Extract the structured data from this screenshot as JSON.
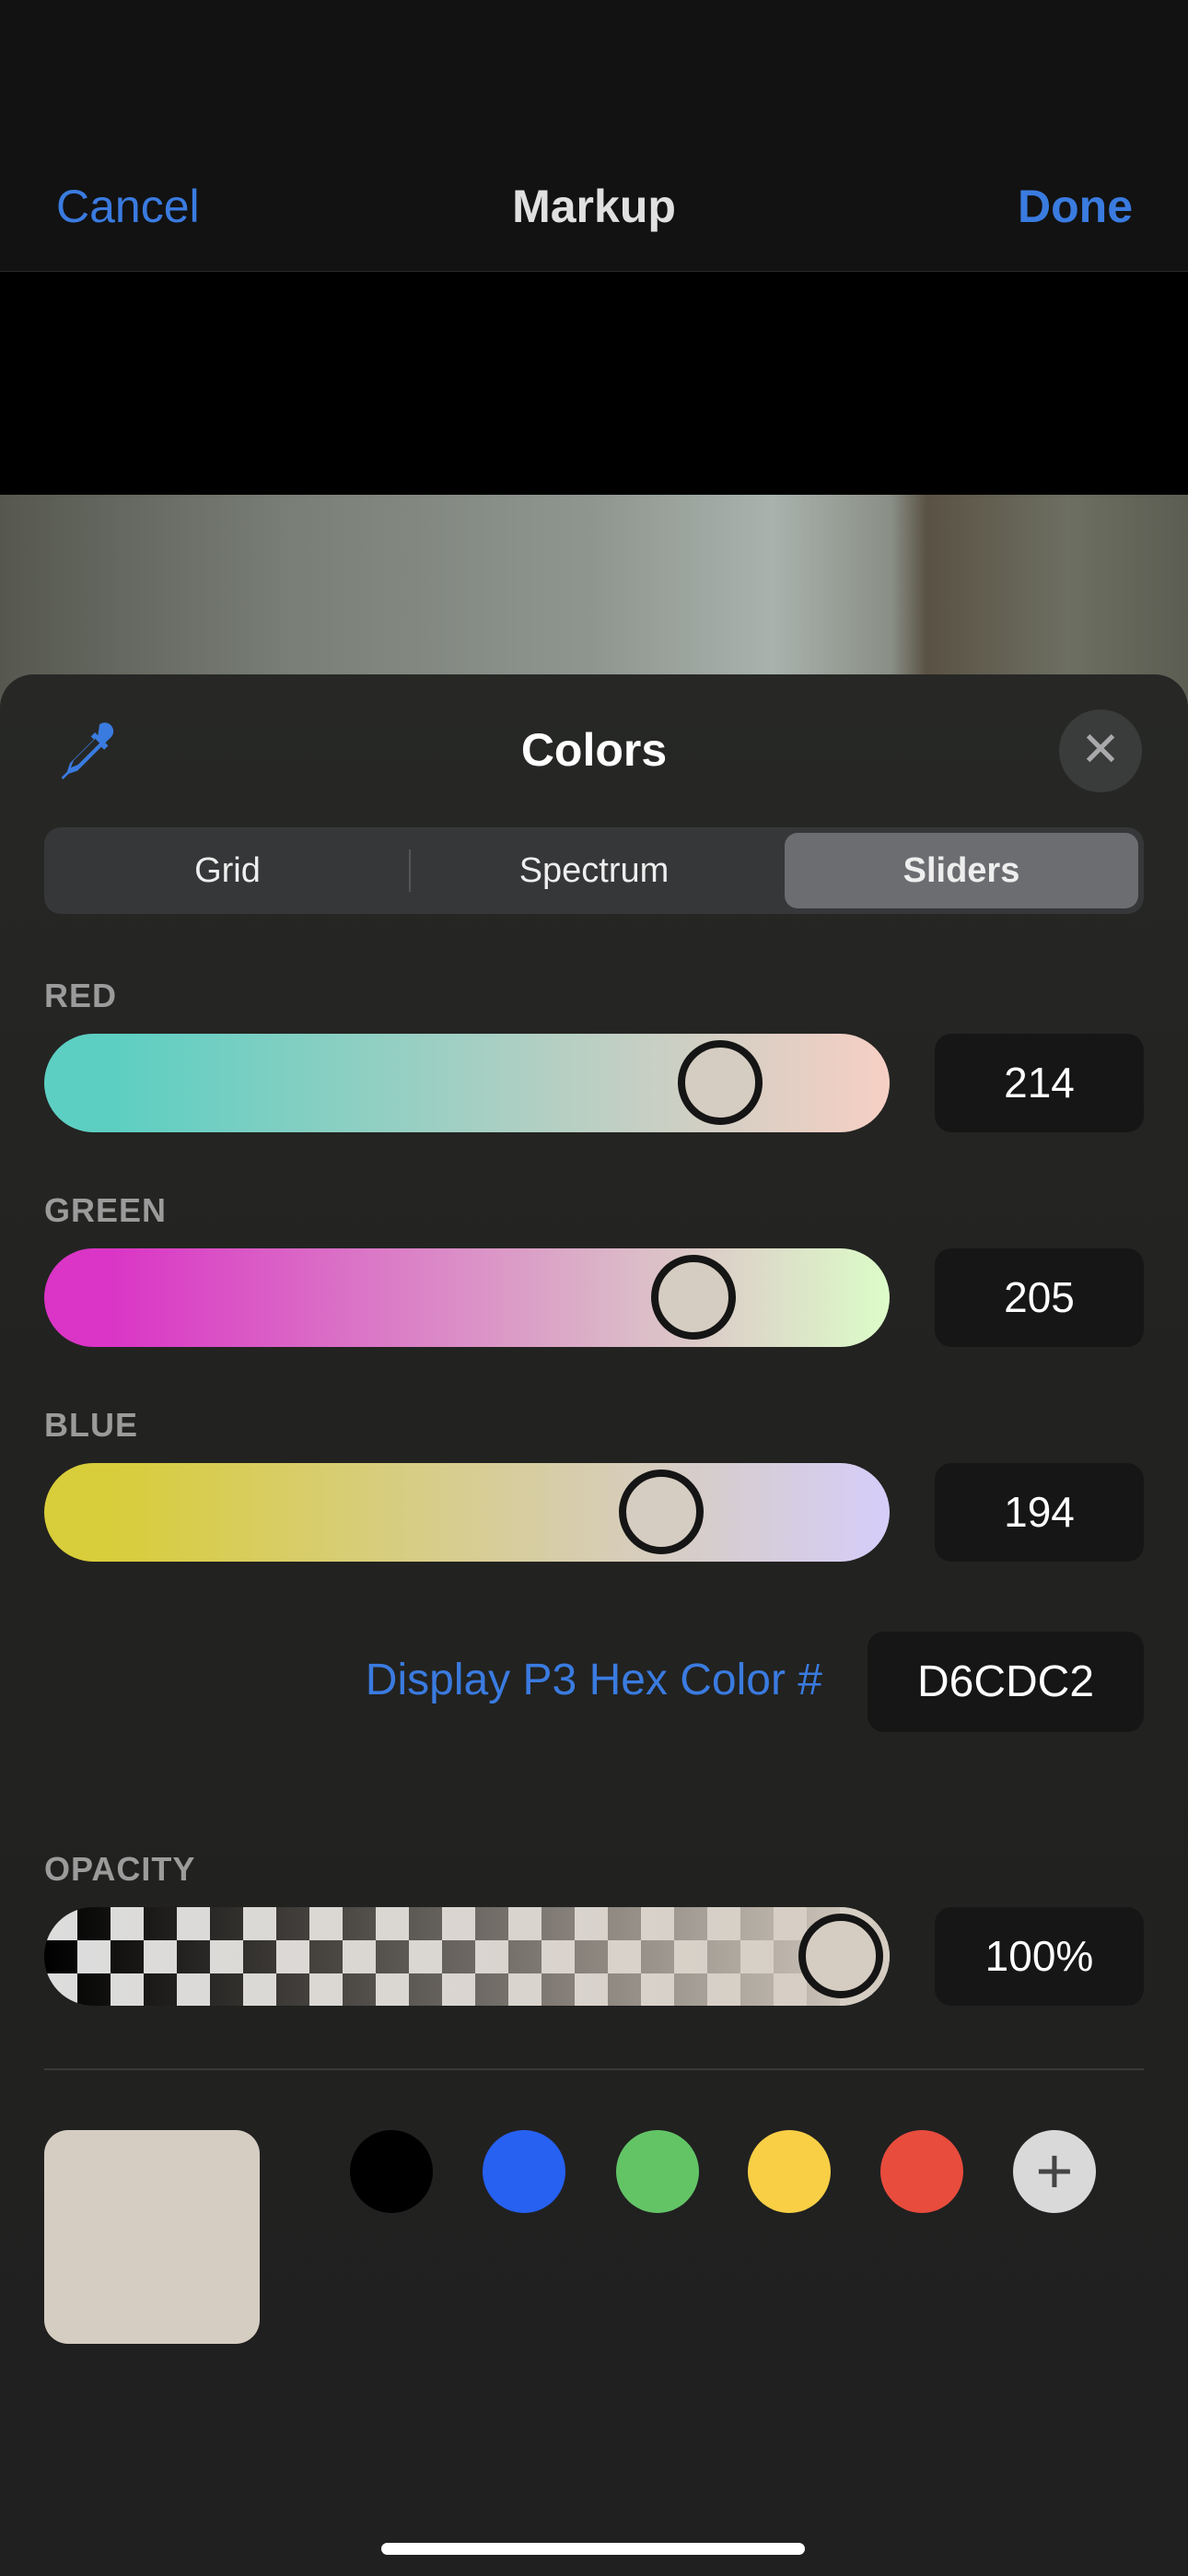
{
  "nav": {
    "cancel": "Cancel",
    "title": "Markup",
    "done": "Done"
  },
  "sheet": {
    "title": "Colors",
    "eyedropper_icon": "eyedropper-icon",
    "close_icon": "close-icon"
  },
  "tabs": [
    {
      "label": "Grid",
      "selected": false
    },
    {
      "label": "Spectrum",
      "selected": false
    },
    {
      "label": "Sliders",
      "selected": true
    }
  ],
  "sliders": [
    {
      "label": "RED",
      "value": "214",
      "max": 255,
      "gradient": [
        "#5ccfc2",
        "#f7cfc4"
      ]
    },
    {
      "label": "GREEN",
      "value": "205",
      "max": 255,
      "gradient": [
        "#da35c6",
        "#dcfcc8"
      ]
    },
    {
      "label": "BLUE",
      "value": "194",
      "max": 255,
      "gradient": [
        "#d8cd3a",
        "#d6cdfa"
      ]
    }
  ],
  "hex": {
    "label": "Display P3 Hex Color #",
    "value": "D6CDC2"
  },
  "opacity": {
    "label": "OPACITY",
    "value": "100%",
    "fraction": 1.0
  },
  "current_color": "#d6cdc2",
  "swatches": [
    {
      "name": "black",
      "color": "#000000"
    },
    {
      "name": "blue",
      "color": "#2761f2"
    },
    {
      "name": "green",
      "color": "#63c466"
    },
    {
      "name": "yellow",
      "color": "#f8cf45"
    },
    {
      "name": "red",
      "color": "#e84c3d"
    }
  ],
  "add_icon": "plus-icon"
}
